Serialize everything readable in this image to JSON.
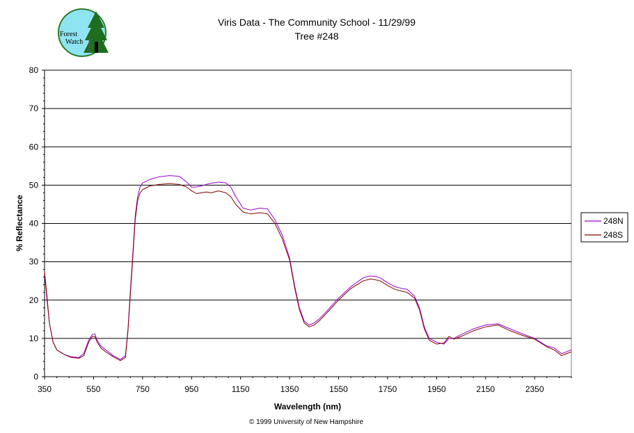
{
  "logo": {
    "line1": "Forest",
    "line2": "Watch"
  },
  "footer": "© 1999 University of New Hampshire",
  "colors": {
    "series_248N": "#9900cc",
    "series_248S": "#800000",
    "logo_bg": "#8ee4f0",
    "tree": "#1f6e1f"
  },
  "chart_data": {
    "type": "line",
    "title": "Viris Data - The Community School - 11/29/99",
    "subtitle": "Tree #248",
    "xlabel": "Wavelength (nm)",
    "ylabel": "% Reflectance",
    "xlim": [
      350,
      2500
    ],
    "ylim": [
      0,
      80
    ],
    "xticks": [
      350,
      550,
      750,
      950,
      1150,
      1350,
      1550,
      1750,
      1950,
      2150,
      2350
    ],
    "yticks": [
      0,
      10,
      20,
      30,
      40,
      50,
      60,
      70,
      80
    ],
    "grid": "horizontal",
    "legend_position": "right",
    "series": [
      {
        "name": "248N",
        "x": [
          350,
          360,
          370,
          385,
          400,
          430,
          460,
          490,
          510,
          530,
          545,
          555,
          565,
          580,
          600,
          630,
          660,
          680,
          690,
          700,
          710,
          720,
          730,
          740,
          750,
          780,
          820,
          860,
          900,
          930,
          950,
          970,
          990,
          1010,
          1030,
          1060,
          1090,
          1110,
          1130,
          1160,
          1190,
          1230,
          1260,
          1290,
          1320,
          1350,
          1370,
          1390,
          1410,
          1430,
          1450,
          1470,
          1500,
          1550,
          1600,
          1650,
          1680,
          1700,
          1720,
          1750,
          1780,
          1810,
          1830,
          1860,
          1880,
          1900,
          1920,
          1950,
          1980,
          2000,
          2020,
          2050,
          2100,
          2150,
          2200,
          2250,
          2300,
          2350,
          2400,
          2430,
          2460,
          2480,
          2500
        ],
        "y": [
          27,
          20,
          14,
          9,
          7,
          5.8,
          5.2,
          5.0,
          6,
          9.5,
          11,
          11.2,
          9.5,
          8,
          7,
          5.5,
          4.5,
          5.5,
          12,
          22,
          32,
          42,
          47,
          49.5,
          50.5,
          51.5,
          52.2,
          52.5,
          52.3,
          50.8,
          49.5,
          49.5,
          49.8,
          50.2,
          50.5,
          50.8,
          50.6,
          49.5,
          47,
          44,
          43.5,
          44,
          43.8,
          41,
          37,
          31,
          24,
          18,
          14.5,
          13.5,
          14,
          15,
          17,
          20.5,
          23.5,
          25.8,
          26.3,
          26.2,
          25.8,
          24.5,
          23.5,
          23,
          22.8,
          21,
          18,
          13,
          10,
          9,
          8.5,
          10,
          10,
          11,
          12.5,
          13.5,
          13.8,
          12.5,
          11.2,
          10,
          8,
          7.5,
          6,
          6.5,
          7
        ]
      },
      {
        "name": "248S",
        "x": [
          350,
          360,
          370,
          385,
          400,
          430,
          460,
          490,
          510,
          530,
          545,
          555,
          565,
          580,
          600,
          630,
          660,
          680,
          690,
          700,
          710,
          720,
          730,
          740,
          750,
          780,
          820,
          860,
          900,
          930,
          950,
          970,
          990,
          1010,
          1030,
          1060,
          1090,
          1110,
          1130,
          1160,
          1190,
          1230,
          1260,
          1290,
          1320,
          1350,
          1370,
          1390,
          1410,
          1430,
          1450,
          1470,
          1500,
          1550,
          1600,
          1650,
          1680,
          1700,
          1720,
          1750,
          1780,
          1810,
          1830,
          1860,
          1880,
          1900,
          1920,
          1950,
          1980,
          2000,
          2020,
          2050,
          2100,
          2150,
          2200,
          2250,
          2300,
          2350,
          2400,
          2430,
          2460,
          2480,
          2500
        ],
        "y": [
          27.5,
          21,
          14,
          9,
          7,
          5.8,
          5.0,
          4.8,
          5.5,
          9,
          10.5,
          10.5,
          9,
          7.5,
          6.5,
          5.2,
          4.2,
          5,
          11.5,
          21,
          31,
          41,
          46,
          48,
          48.8,
          49.8,
          50.2,
          50.4,
          50.2,
          49.5,
          48.5,
          47.8,
          48,
          48.2,
          48,
          48.5,
          48,
          47,
          45,
          43,
          42.5,
          42.8,
          42.5,
          40,
          36,
          30.5,
          23.5,
          17.5,
          14,
          13,
          13.5,
          14.5,
          16.5,
          20,
          23,
          25,
          25.5,
          25.3,
          25,
          23.8,
          22.8,
          22.3,
          22,
          20.5,
          17.5,
          12.5,
          9.5,
          8.5,
          8.8,
          10.5,
          9.8,
          10.5,
          12,
          13,
          13.5,
          12,
          10.8,
          9.8,
          7.8,
          7,
          5.5,
          6,
          6.5
        ]
      }
    ]
  }
}
